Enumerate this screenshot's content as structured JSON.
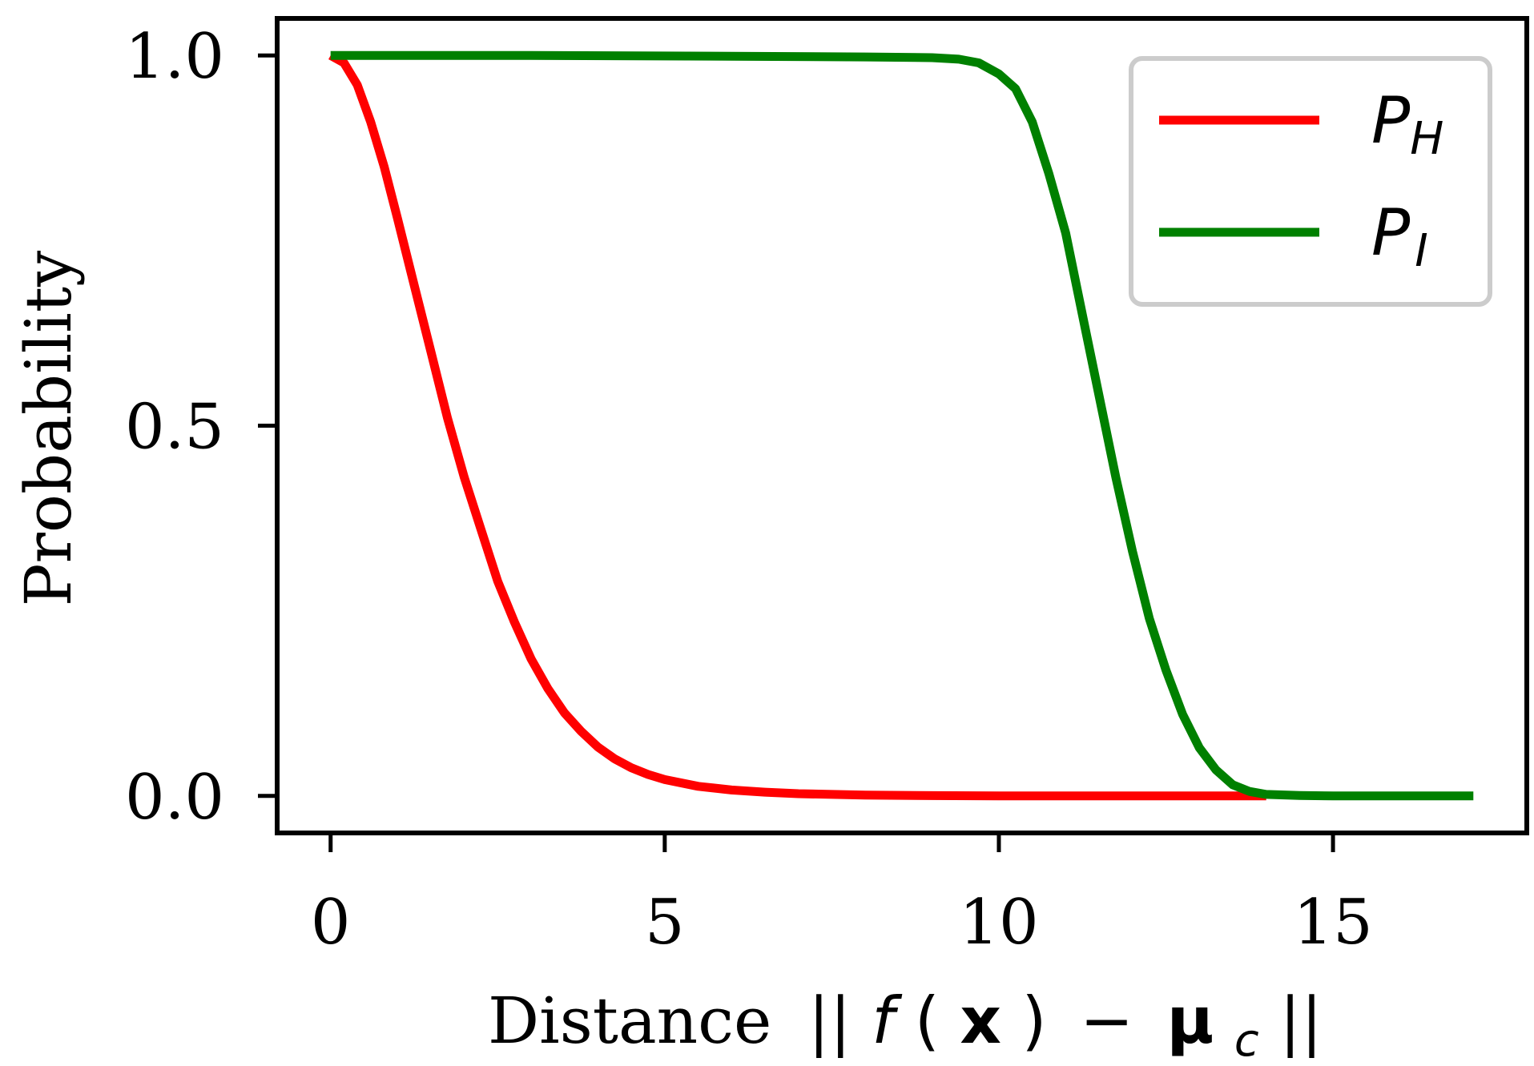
{
  "chart_data": {
    "type": "line",
    "xlabel": "Distance",
    "xlabel_math": {
      "norm_open": "||",
      "f": "f",
      "paren_open": "(",
      "x": "x",
      "paren_close": ")",
      "minus": "−",
      "mu": "μ",
      "mu_sub": "c",
      "norm_close": "||"
    },
    "ylabel": "Probability",
    "xlim": [
      -0.8,
      17.9
    ],
    "ylim": [
      -0.05,
      1.05
    ],
    "xticks": [
      0,
      5,
      10,
      15
    ],
    "xtick_labels": [
      "0",
      "5",
      "10",
      "15"
    ],
    "yticks": [
      0.0,
      0.5,
      1.0
    ],
    "ytick_labels": [
      "0.0",
      "0.5",
      "1.0"
    ],
    "grid": false,
    "legend_position": "top-right",
    "series": [
      {
        "key": "ph",
        "name": "P",
        "name_sub": "H",
        "color": "#ff0000",
        "points": [
          [
            0.0,
            1.0
          ],
          [
            0.2,
            0.99
          ],
          [
            0.4,
            0.96
          ],
          [
            0.6,
            0.91
          ],
          [
            0.8,
            0.85
          ],
          [
            1.0,
            0.78
          ],
          [
            1.25,
            0.69
          ],
          [
            1.5,
            0.6
          ],
          [
            1.75,
            0.51
          ],
          [
            2.0,
            0.43
          ],
          [
            2.25,
            0.36
          ],
          [
            2.5,
            0.29
          ],
          [
            2.75,
            0.235
          ],
          [
            3.0,
            0.185
          ],
          [
            3.25,
            0.145
          ],
          [
            3.5,
            0.112
          ],
          [
            3.75,
            0.087
          ],
          [
            4.0,
            0.066
          ],
          [
            4.25,
            0.05
          ],
          [
            4.5,
            0.038
          ],
          [
            4.75,
            0.029
          ],
          [
            5.0,
            0.022
          ],
          [
            5.5,
            0.013
          ],
          [
            6.0,
            0.008
          ],
          [
            6.5,
            0.005
          ],
          [
            7.0,
            0.003
          ],
          [
            8.0,
            0.001
          ],
          [
            9.0,
            0.0004
          ],
          [
            10.0,
            0.0001
          ],
          [
            12.0,
            0.0
          ],
          [
            14.0,
            0.0
          ]
        ]
      },
      {
        "key": "pi",
        "name": "P",
        "name_sub": "I",
        "color": "#008000",
        "points": [
          [
            0.0,
            1.0
          ],
          [
            3.0,
            1.0
          ],
          [
            6.0,
            0.999
          ],
          [
            8.0,
            0.998
          ],
          [
            9.0,
            0.997
          ],
          [
            9.4,
            0.995
          ],
          [
            9.7,
            0.99
          ],
          [
            10.0,
            0.975
          ],
          [
            10.25,
            0.955
          ],
          [
            10.5,
            0.91
          ],
          [
            10.75,
            0.84
          ],
          [
            11.0,
            0.76
          ],
          [
            11.25,
            0.65
          ],
          [
            11.5,
            0.54
          ],
          [
            11.75,
            0.43
          ],
          [
            12.0,
            0.33
          ],
          [
            12.25,
            0.24
          ],
          [
            12.5,
            0.17
          ],
          [
            12.75,
            0.11
          ],
          [
            13.0,
            0.065
          ],
          [
            13.25,
            0.035
          ],
          [
            13.5,
            0.015
          ],
          [
            13.75,
            0.006
          ],
          [
            14.0,
            0.002
          ],
          [
            14.5,
            0.0005
          ],
          [
            15.0,
            0.0
          ],
          [
            16.0,
            0.0
          ],
          [
            17.1,
            0.0
          ]
        ]
      }
    ]
  }
}
